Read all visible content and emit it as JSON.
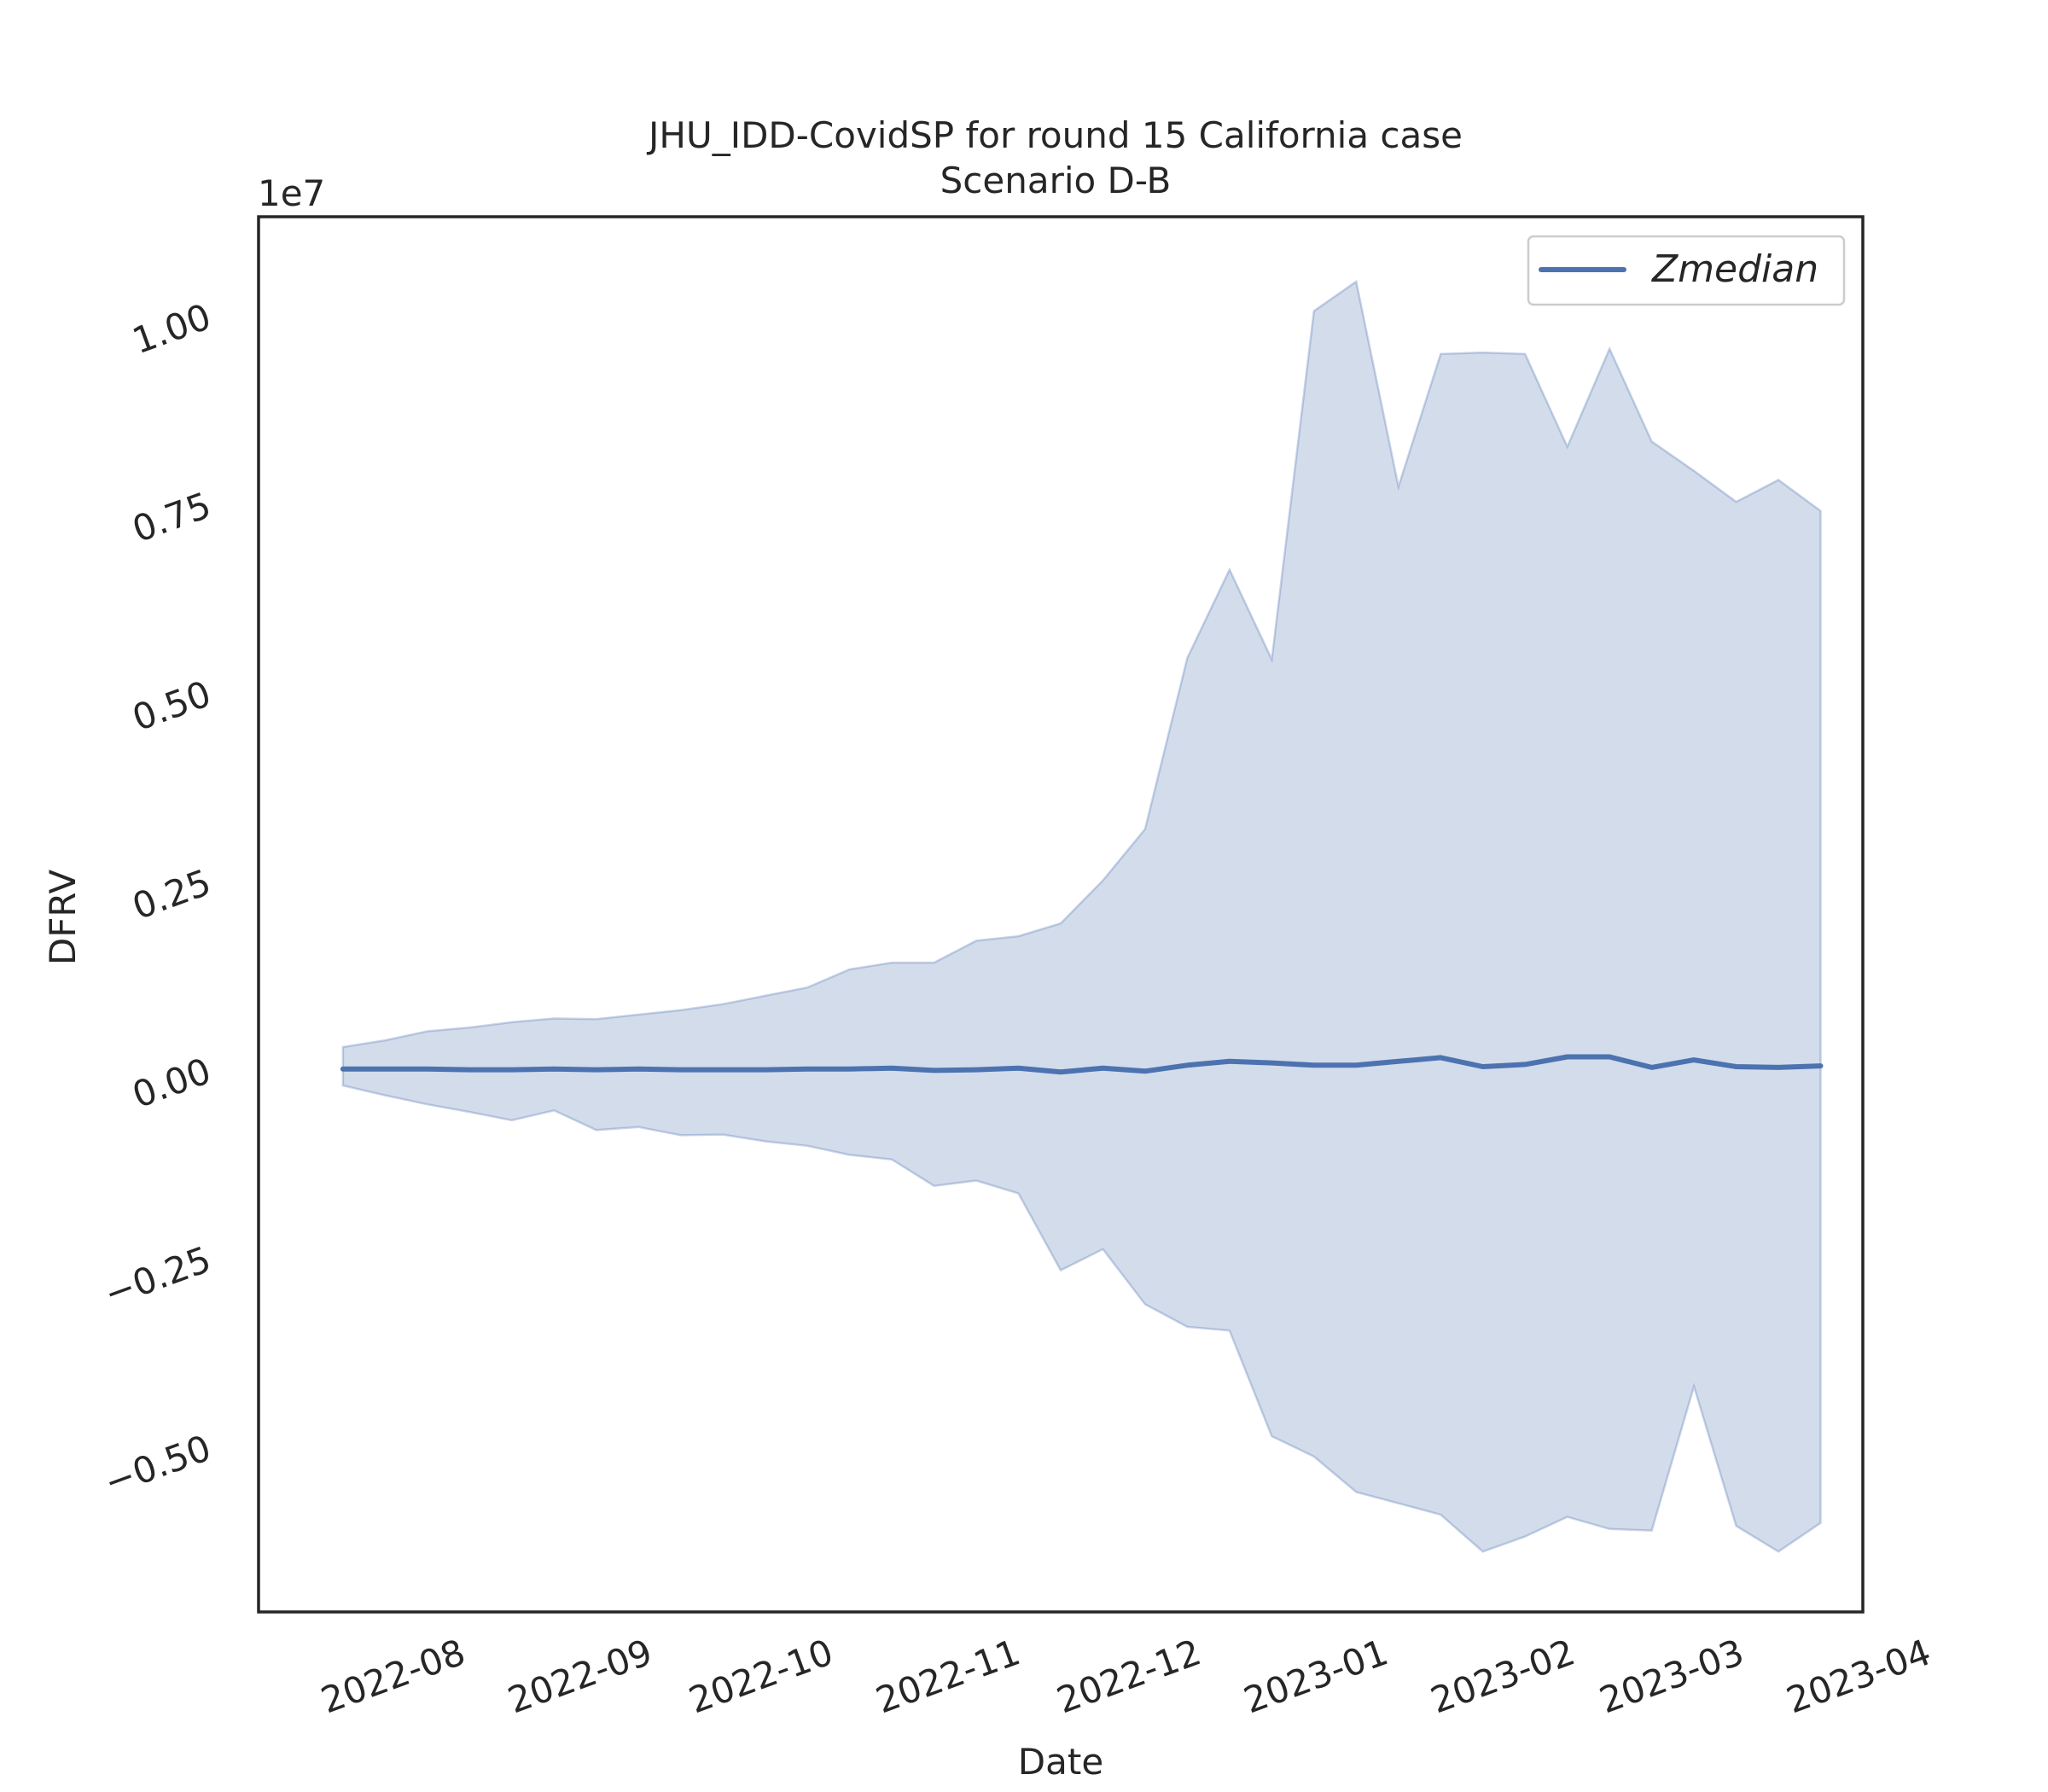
{
  "chart_data": {
    "type": "line",
    "title": "JHU_IDD-CovidSP for round 15 California case",
    "subtitle": "Scenario D-B",
    "xlabel": "Date",
    "ylabel": "DFRV",
    "y_offset_label": "1e7",
    "y_scale_factor": 10000000,
    "ylim": [
      -7200000,
      11300000
    ],
    "xlim": [
      "2022-07-09",
      "2023-04-01"
    ],
    "grid": false,
    "legend_position": "top-right",
    "x_ticks": [
      "2022-08",
      "2022-09",
      "2022-10",
      "2022-11",
      "2022-12",
      "2023-01",
      "2023-02",
      "2023-03",
      "2023-04"
    ],
    "y_ticks": [
      {
        "value": -5000000,
        "label": "−0.50"
      },
      {
        "value": -2500000,
        "label": "−0.25"
      },
      {
        "value": 0,
        "label": "0.00"
      },
      {
        "value": 2500000,
        "label": "0.25"
      },
      {
        "value": 5000000,
        "label": "0.50"
      },
      {
        "value": 7500000,
        "label": "0.75"
      },
      {
        "value": 10000000,
        "label": "1.00"
      }
    ],
    "x": [
      "2022-07-23",
      "2022-07-30",
      "2022-08-06",
      "2022-08-13",
      "2022-08-20",
      "2022-08-27",
      "2022-09-03",
      "2022-09-10",
      "2022-09-17",
      "2022-09-24",
      "2022-10-01",
      "2022-10-08",
      "2022-10-15",
      "2022-10-22",
      "2022-10-29",
      "2022-11-05",
      "2022-11-12",
      "2022-11-19",
      "2022-11-26",
      "2022-12-03",
      "2022-12-10",
      "2022-12-17",
      "2022-12-24",
      "2022-12-31",
      "2023-01-07",
      "2023-01-14",
      "2023-01-21",
      "2023-01-28",
      "2023-02-04",
      "2023-02-11",
      "2023-02-18",
      "2023-02-25",
      "2023-03-04",
      "2023-03-11",
      "2023-03-18",
      "2023-03-25"
    ],
    "series": [
      {
        "name": "Zmedian",
        "color": "#4c72b0",
        "values": [
          0,
          0,
          0,
          -10000,
          -10000,
          0,
          -10000,
          0,
          -10000,
          -10000,
          -10000,
          0,
          0,
          10000,
          -20000,
          -10000,
          10000,
          -40000,
          10000,
          -30000,
          50000,
          100000,
          80000,
          50000,
          50000,
          100000,
          150000,
          30000,
          60000,
          160000,
          160000,
          20000,
          120000,
          30000,
          20000,
          40000
        ]
      }
    ],
    "band": {
      "color": "#4c72b0",
      "opacity": 0.25,
      "upper": [
        290000,
        380000,
        500000,
        550000,
        620000,
        670000,
        660000,
        720000,
        780000,
        860000,
        970000,
        1080000,
        1320000,
        1410000,
        1410000,
        1700000,
        1760000,
        1930000,
        2500000,
        3180000,
        5450000,
        6620000,
        5430000,
        10050000,
        10440000,
        7720000,
        9480000,
        9500000,
        9480000,
        8250000,
        9550000,
        8320000,
        7930000,
        7520000,
        7810000,
        7400000
      ],
      "lower": [
        -220000,
        -350000,
        -470000,
        -570000,
        -680000,
        -550000,
        -810000,
        -770000,
        -880000,
        -870000,
        -960000,
        -1020000,
        -1140000,
        -1200000,
        -1550000,
        -1480000,
        -1650000,
        -2670000,
        -2390000,
        -3120000,
        -3420000,
        -3470000,
        -4870000,
        -5140000,
        -5610000,
        -5760000,
        -5910000,
        -6400000,
        -6200000,
        -5940000,
        -6100000,
        -6120000,
        -4210000,
        -6060000,
        -6400000,
        -6020000
      ]
    }
  }
}
